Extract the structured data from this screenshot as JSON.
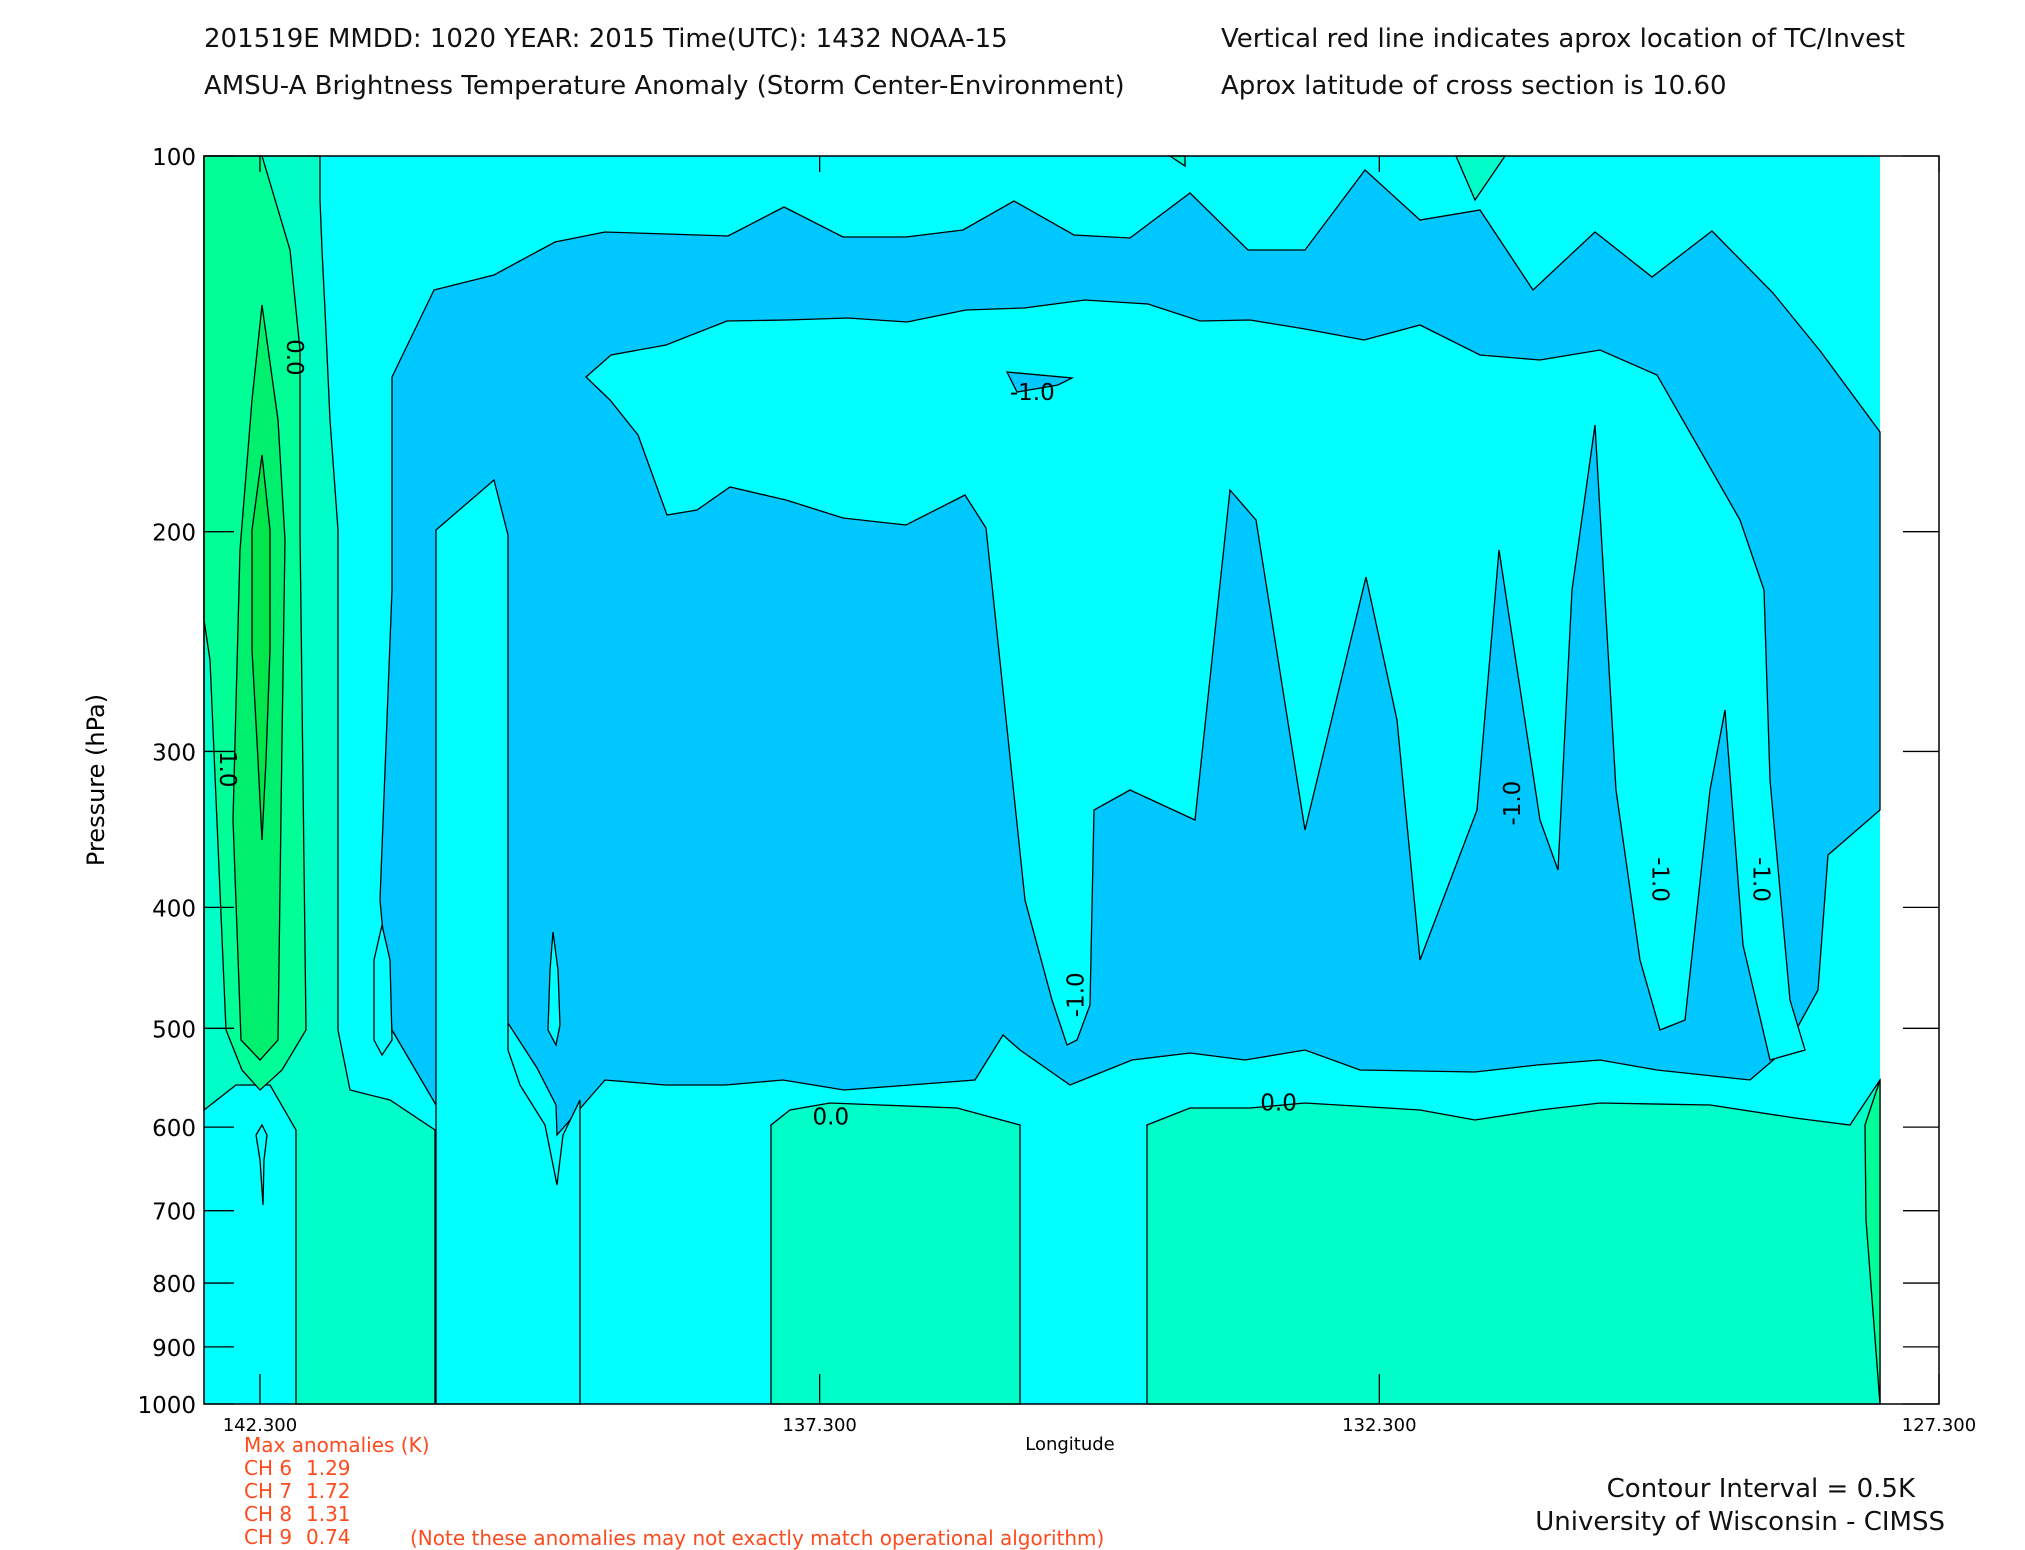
{
  "header": {
    "line1_left": "201519E  MMDD: 1020 YEAR: 2015 Time(UTC): 1432 NOAA-15",
    "line1_right": "Vertical red line indicates aprox location of TC/Invest",
    "line2_left": "AMSU-A Brightness Temperature Anomaly (Storm Center-Environment)",
    "line2_right": "Aprox latitude of cross section is 10.60"
  },
  "chart_data": {
    "type": "contour",
    "xlabel": "Longitude",
    "ylabel": "Pressure (hPa)",
    "xlim": [
      142.8,
      127.3
    ],
    "ylim": [
      1000,
      100
    ],
    "yscale": "log",
    "x_ticks": [
      "142.300",
      "137.300",
      "132.300",
      "127.300"
    ],
    "x_tick_values": [
      142.3,
      137.3,
      132.3,
      127.3
    ],
    "y_ticks": [
      "100",
      "200",
      "300",
      "400",
      "500",
      "600",
      "700",
      "800",
      "900",
      "1000"
    ],
    "y_tick_values": [
      100,
      200,
      300,
      400,
      500,
      600,
      700,
      800,
      900,
      1000
    ],
    "contour_interval": 0.5,
    "contour_labels": [
      {
        "text": "0.0",
        "lon": 142.0,
        "p": 145,
        "rotate": 90
      },
      {
        "text": "1.0",
        "lon": 142.6,
        "p": 310,
        "rotate": 90
      },
      {
        "text": "-1.0",
        "lon": 135.4,
        "p": 155,
        "rotate": 0
      },
      {
        "text": "-1.0",
        "lon": 135.0,
        "p": 470,
        "rotate": -90
      },
      {
        "text": "-1.0",
        "lon": 131.1,
        "p": 330,
        "rotate": -90
      },
      {
        "text": "-1.0",
        "lon": 128.9,
        "p": 380,
        "rotate": 90
      },
      {
        "text": "-1.0",
        "lon": 129.8,
        "p": 380,
        "rotate": 90
      },
      {
        "text": "0.0",
        "lon": 137.2,
        "p": 590,
        "rotate": 0
      },
      {
        "text": "0.0",
        "lon": 133.2,
        "p": 575,
        "rotate": 0
      }
    ],
    "colors": {
      "level_1.5": "#00e64b",
      "level_1.0": "#00f06e",
      "level_0.5": "#00ff96",
      "level_0.0": "#00ffc8",
      "level_-0.5": "#00ffff",
      "level_-1.0": "#00c8ff",
      "level_-1.5": "#0096ff",
      "missing": "#ffffff"
    },
    "max_anomalies": {
      "title": "Max anomalies (K)",
      "items": [
        {
          "channel": "CH 6",
          "value": "1.29"
        },
        {
          "channel": "CH 7",
          "value": "1.72"
        },
        {
          "channel": "CH 8",
          "value": "1.31"
        },
        {
          "channel": "CH 9",
          "value": "0.74"
        }
      ],
      "note": "(Note these anomalies may not exactly match operational algorithm)"
    }
  },
  "footer": {
    "contour_interval": "Contour Interval = 0.5K",
    "credit": "University of Wisconsin - CIMSS"
  }
}
